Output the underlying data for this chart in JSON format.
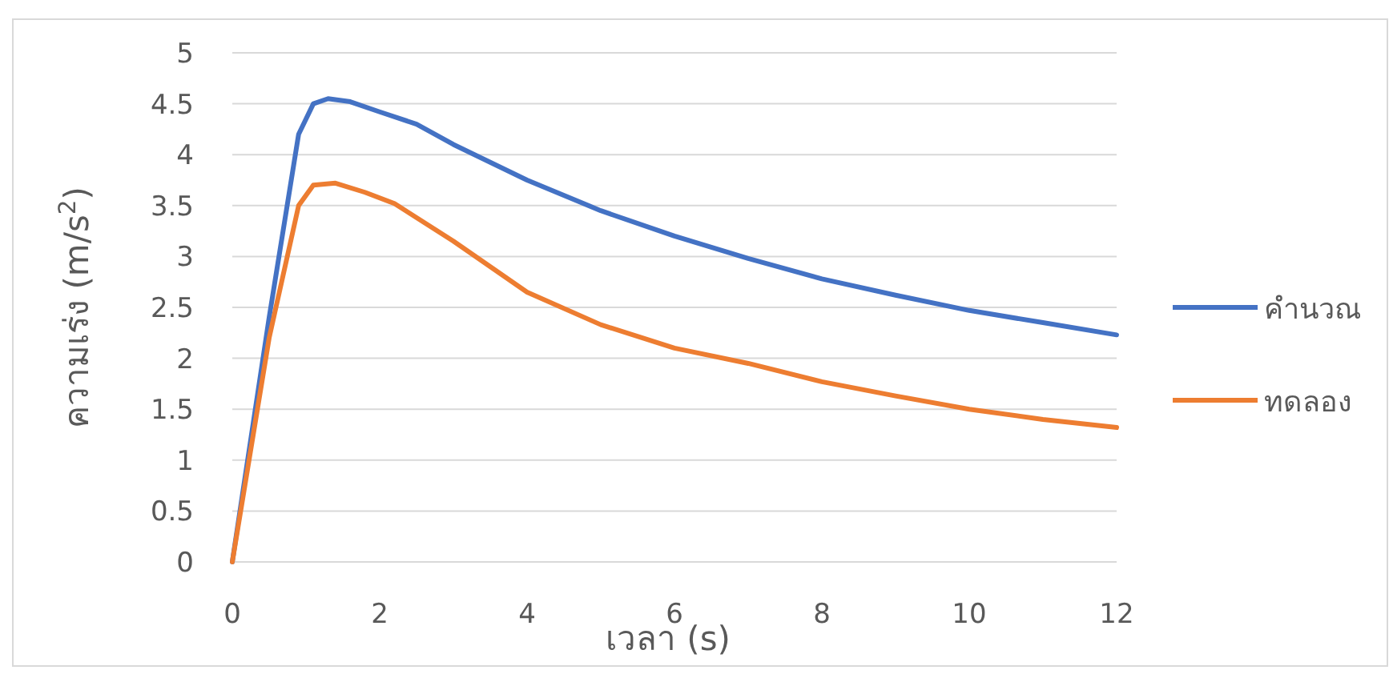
{
  "chart_data": {
    "type": "line",
    "xlabel": "เวลา (s)",
    "ylabel": "ความเร่ง (m/s$^{2}$)",
    "xlim": [
      0,
      12
    ],
    "xticks": [
      0,
      2,
      4,
      6,
      8,
      10,
      12
    ],
    "ylim": [
      0,
      5
    ],
    "yticks": [
      0,
      0.5,
      1,
      1.5,
      2,
      2.5,
      3,
      3.5,
      4,
      4.5,
      5
    ],
    "grid": "y",
    "legend": "right",
    "marker": "none",
    "line_style": "solid",
    "series": [
      {
        "name": "คำนวณ",
        "color": "#4472c4",
        "x": [
          0,
          0.5,
          0.9,
          1.1,
          1.3,
          1.6,
          2,
          2.5,
          3,
          4,
          5,
          6,
          7,
          8,
          9,
          10,
          11,
          12
        ],
        "values": [
          0,
          2.4,
          4.2,
          4.5,
          4.55,
          4.52,
          4.42,
          4.3,
          4.1,
          3.75,
          3.45,
          3.2,
          2.98,
          2.78,
          2.62,
          2.47,
          2.35,
          2.23
        ]
      },
      {
        "name": "ทดลอง",
        "color": "#ed7d31",
        "x": [
          0,
          0.5,
          0.9,
          1.1,
          1.4,
          1.8,
          2.2,
          3,
          4,
          5,
          6,
          7,
          8,
          9,
          10,
          11,
          12
        ],
        "values": [
          0,
          2.2,
          3.5,
          3.7,
          3.72,
          3.63,
          3.52,
          3.15,
          2.65,
          2.33,
          2.1,
          1.95,
          1.77,
          1.63,
          1.5,
          1.4,
          1.32
        ]
      }
    ]
  }
}
